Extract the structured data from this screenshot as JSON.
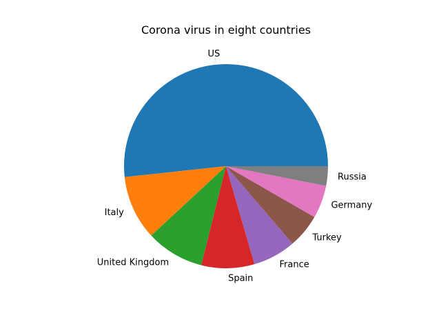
{
  "chart_data": {
    "type": "pie",
    "title": "Corona virus in eight countries",
    "categories": [
      "US",
      "Italy",
      "United Kingdom",
      "Spain",
      "France",
      "Turkey",
      "Germany",
      "Russia"
    ],
    "values": [
      51.7,
      10.2,
      9.2,
      8.4,
      6.8,
      5.4,
      5.2,
      3.1
    ],
    "colors": [
      "#1f77b4",
      "#ff7f0e",
      "#2ca02c",
      "#d62728",
      "#9467bd",
      "#8c564b",
      "#e377c2",
      "#7f7f7f"
    ],
    "start_angle_deg": 0,
    "direction": "counterclockwise",
    "legend": "none"
  }
}
